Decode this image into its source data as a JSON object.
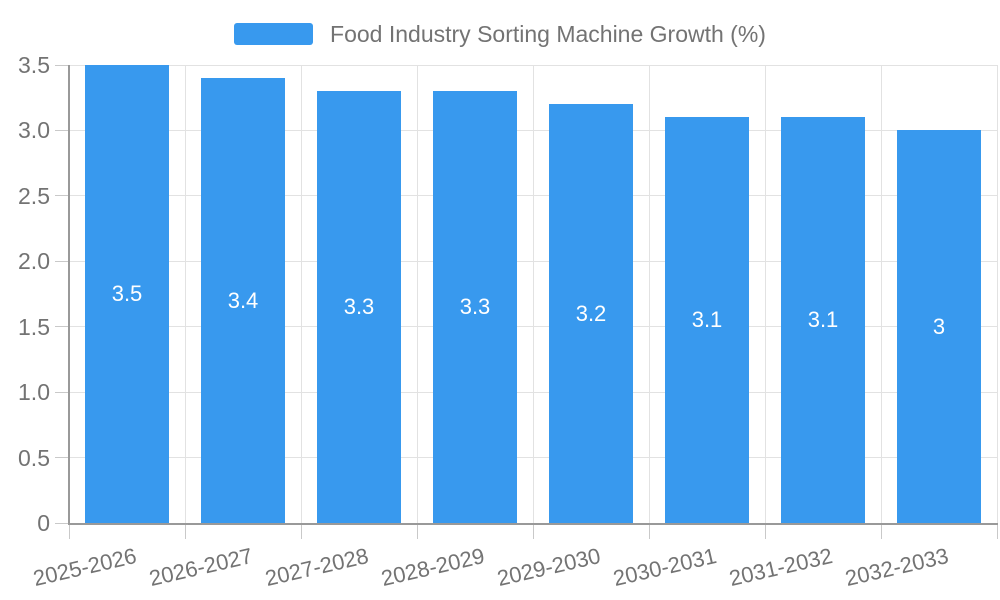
{
  "chart_data": {
    "type": "bar",
    "title": "Food Industry Sorting Machine Growth (%)",
    "categories": [
      "2025-2026",
      "2026-2027",
      "2027-2028",
      "2028-2029",
      "2029-2030",
      "2030-2031",
      "2031-2032",
      "2032-2033"
    ],
    "values": [
      3.5,
      3.4,
      3.3,
      3.3,
      3.2,
      3.1,
      3.1,
      3
    ],
    "bar_labels": [
      "3.5",
      "3.4",
      "3.3",
      "3.3",
      "3.2",
      "3.1",
      "3.1",
      "3"
    ],
    "y_ticks": [
      "0",
      "0.5",
      "1.0",
      "1.5",
      "2.0",
      "2.5",
      "3.0",
      "3.5"
    ],
    "ylim": [
      0,
      3.5
    ],
    "xlabel": "",
    "ylabel": "",
    "grid": true,
    "legend_position": "top-center",
    "x_label_rotation_deg": -13,
    "colors": {
      "bar": "#3899ee",
      "grid": "#e2e2e2",
      "tick": "#c9c9c9",
      "axis": "#999999",
      "text": "#737373",
      "bar_label_text": "#ffffff",
      "background": "#ffffff"
    }
  }
}
